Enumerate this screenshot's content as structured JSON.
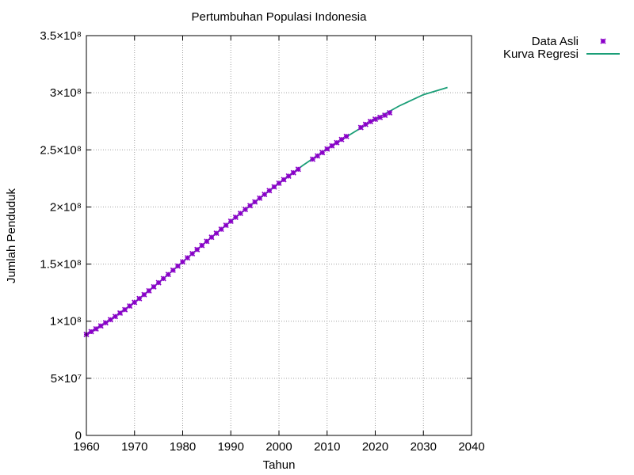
{
  "chart_data": {
    "type": "line",
    "title": "Pertumbuhan Populasi Indonesia",
    "xlabel": "Tahun",
    "ylabel": "Jumlah Penduduk",
    "xlim": [
      1960,
      2040
    ],
    "ylim": [
      0,
      350000000
    ],
    "grid": true,
    "legend_position": "top-right, outside plot",
    "x_ticks": [
      {
        "value": 1960,
        "label": "1960"
      },
      {
        "value": 1970,
        "label": "1970"
      },
      {
        "value": 1980,
        "label": "1980"
      },
      {
        "value": 1990,
        "label": "1990"
      },
      {
        "value": 2000,
        "label": "2000"
      },
      {
        "value": 2010,
        "label": "2010"
      },
      {
        "value": 2020,
        "label": "2020"
      },
      {
        "value": 2030,
        "label": "2030"
      },
      {
        "value": 2040,
        "label": "2040"
      }
    ],
    "y_ticks": [
      {
        "value": 0,
        "label": "0"
      },
      {
        "value": 50000000,
        "label": "5×10⁷"
      },
      {
        "value": 100000000,
        "label": "1×10⁸"
      },
      {
        "value": 150000000,
        "label": "1.5×10⁸"
      },
      {
        "value": 200000000,
        "label": "2×10⁸"
      },
      {
        "value": 250000000,
        "label": "2.5×10⁸"
      },
      {
        "value": 300000000,
        "label": "3×10⁸"
      },
      {
        "value": 350000000,
        "label": "3.5×10⁸"
      }
    ],
    "series": [
      {
        "name": "Data Asli",
        "kind": "points",
        "color": "#8b00c9",
        "x": [
          1960,
          1961,
          1962,
          1963,
          1964,
          1965,
          1966,
          1967,
          1968,
          1969,
          1970,
          1971,
          1972,
          1973,
          1974,
          1975,
          1976,
          1977,
          1978,
          1979,
          1980,
          1981,
          1982,
          1983,
          1984,
          1985,
          1986,
          1987,
          1988,
          1989,
          1990,
          1991,
          1992,
          1993,
          1994,
          1995,
          1996,
          1997,
          1998,
          1999,
          2000,
          2001,
          2002,
          2003,
          2004,
          2007,
          2008,
          2009,
          2010,
          2011,
          2012,
          2013,
          2014,
          2017,
          2018,
          2019,
          2020,
          2021,
          2022,
          2023
        ],
        "y": [
          88400000,
          90800000,
          93300000,
          95900000,
          98600000,
          101300000,
          104100000,
          107100000,
          110100000,
          113300000,
          116500000,
          119800000,
          123200000,
          126600000,
          130100000,
          133700000,
          137300000,
          140900000,
          144600000,
          148300000,
          151900000,
          155500000,
          159100000,
          162700000,
          166300000,
          169900000,
          173500000,
          177000000,
          180500000,
          184000000,
          187500000,
          191000000,
          194400000,
          197800000,
          201100000,
          204400000,
          207700000,
          211000000,
          214300000,
          217600000,
          220800000,
          223900000,
          227000000,
          230000000,
          233000000,
          241800000,
          244700000,
          247600000,
          250800000,
          253500000,
          256300000,
          259100000,
          261800000,
          269600000,
          272300000,
          274800000,
          276800000,
          278400000,
          280300000,
          282500000
        ]
      },
      {
        "name": "Kurva Regresi",
        "kind": "line",
        "color": "#1a9e77",
        "x": [
          1960,
          1965,
          1970,
          1975,
          1980,
          1985,
          1990,
          1995,
          2000,
          2005,
          2010,
          2015,
          2020,
          2025,
          2030,
          2035
        ],
        "y": [
          88400000,
          101300000,
          116500000,
          133700000,
          151900000,
          169900000,
          187500000,
          204400000,
          220800000,
          236500000,
          250800000,
          264000000,
          276800000,
          288500000,
          298300000,
          304600000
        ]
      }
    ]
  }
}
